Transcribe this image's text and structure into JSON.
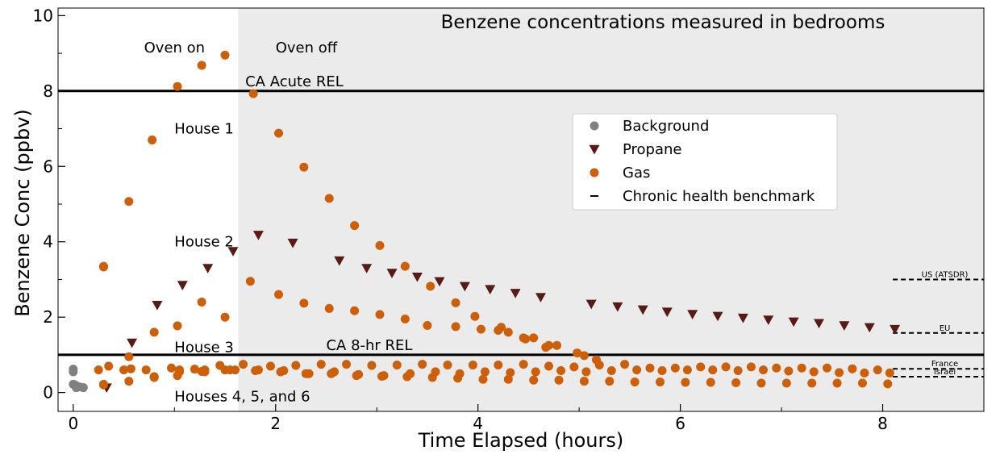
{
  "chart_data": {
    "type": "scatter",
    "title": "Benzene concentrations measured in bedrooms",
    "xlabel": "Time Elapsed (hours)",
    "ylabel": "Benzene Conc (ppbv)",
    "xlim": [
      -0.15,
      9.0
    ],
    "ylim": [
      -0.5,
      10.2
    ],
    "x_ticks": [
      0,
      2,
      4,
      6,
      8
    ],
    "y_ticks": [
      0,
      2,
      4,
      6,
      8,
      10
    ],
    "shaded_region": {
      "x_start": 1.63,
      "x_end": 9.0,
      "color": "#ebebeb"
    },
    "reference_lines": [
      {
        "y": 8.0,
        "label": "CA Acute REL",
        "label_x": 1.7
      },
      {
        "y": 1.0,
        "label": "CA 8-hr REL",
        "label_x": 2.5
      }
    ],
    "benchmarks": [
      {
        "y": 3.0,
        "label": "US (ATSDR)"
      },
      {
        "y": 1.58,
        "label": "EU"
      },
      {
        "y": 0.63,
        "label": "France"
      },
      {
        "y": 0.42,
        "label": "Israel"
      }
    ],
    "benchmark_x_range": [
      8.1,
      9.0
    ],
    "annotations": [
      {
        "text": "Oven on",
        "x": 0.7,
        "y": 9.15
      },
      {
        "text": "Oven off",
        "x": 2.0,
        "y": 9.15
      },
      {
        "text": "House 1",
        "x": 1.0,
        "y": 7.0
      },
      {
        "text": "House 2",
        "x": 1.0,
        "y": 4.0
      },
      {
        "text": "House 3",
        "x": 1.0,
        "y": 1.2
      },
      {
        "text": "Houses 4, 5, and 6",
        "x": 1.0,
        "y": -0.1
      }
    ],
    "legend": {
      "placement": "center-right",
      "entries": [
        "Background",
        "Propane",
        "Gas",
        "Chronic health benchmark"
      ]
    },
    "colors": {
      "Background": "#808080",
      "Propane": "#5a1a14",
      "Gas": "#cc5f07"
    },
    "series": [
      {
        "name": "Background",
        "marker": "circle",
        "x": [
          0,
          0.0,
          0.02,
          0.06,
          0.1,
          0.0,
          0.03
        ],
        "y": [
          0.62,
          0.55,
          0.2,
          0.15,
          0.13,
          0.22,
          0.13
        ]
      },
      {
        "name": "Propane",
        "marker": "triangle-down",
        "x": [
          0.33,
          0.58,
          0.83,
          1.08,
          1.33,
          1.58,
          1.83,
          2.17,
          2.63,
          2.9,
          3.15,
          3.4,
          3.62,
          3.87,
          4.12,
          4.37,
          4.62,
          5.12,
          5.38,
          5.63,
          5.87,
          6.12,
          6.37,
          6.62,
          6.87,
          7.12,
          7.37,
          7.62,
          7.87,
          8.12
        ],
        "y": [
          0.13,
          1.32,
          2.32,
          2.85,
          3.3,
          3.75,
          4.18,
          3.97,
          3.5,
          3.3,
          3.17,
          3.07,
          2.95,
          2.82,
          2.74,
          2.64,
          2.53,
          2.35,
          2.28,
          2.2,
          2.14,
          2.08,
          2.03,
          1.98,
          1.93,
          1.88,
          1.84,
          1.78,
          1.73,
          1.68
        ]
      },
      {
        "name": "Gas",
        "marker": "circle",
        "x": [
          0.3,
          0.55,
          0.78,
          1.03,
          1.27,
          1.5,
          1.78,
          2.03,
          2.28,
          2.53,
          2.78,
          3.03,
          0.3,
          0.8,
          1.03,
          1.27,
          1.5,
          1.75,
          2.03,
          2.28,
          2.53,
          2.78,
          3.03,
          3.28,
          3.5,
          3.78,
          4.03,
          4.3,
          4.55,
          4.78,
          5.05,
          0.3,
          0.55,
          0.8,
          1.03,
          1.27,
          1.5,
          3.28,
          3.53,
          3.78,
          3.97,
          4.23,
          4.47,
          4.67,
          4.98,
          5.17,
          4.2,
          4.45,
          4.7,
          0.25,
          0.35,
          0.5,
          0.57,
          0.72,
          0.8,
          0.97,
          1.05,
          1.2,
          1.3,
          1.45,
          1.6,
          1.68,
          1.83,
          1.95,
          2.08,
          2.2,
          2.33,
          2.45,
          2.58,
          2.7,
          2.82,
          2.95,
          3.07,
          3.2,
          3.33,
          3.45,
          3.58,
          3.7,
          3.82,
          3.95,
          4.07,
          4.2,
          4.32,
          4.45,
          4.57,
          4.7,
          4.82,
          4.95,
          5.07,
          5.2,
          5.32,
          5.45,
          5.57,
          5.7,
          5.82,
          5.95,
          6.07,
          6.2,
          6.32,
          6.45,
          6.57,
          6.7,
          6.82,
          6.95,
          7.07,
          7.2,
          7.32,
          7.45,
          7.57,
          7.7,
          7.82,
          7.95,
          8.07,
          0.3,
          0.55,
          0.8,
          1.05,
          1.3,
          1.55,
          1.8,
          2.05,
          2.3,
          2.55,
          2.8,
          3.05,
          3.3,
          3.55,
          3.8,
          4.05,
          4.3,
          4.55,
          4.8,
          5.05,
          5.3,
          5.55,
          5.8,
          6.05,
          6.3,
          6.55,
          6.8,
          7.05,
          7.3,
          7.55,
          7.8,
          8.05
        ],
        "y": [
          3.33,
          5.07,
          6.7,
          8.12,
          8.68,
          8.95,
          7.93,
          6.88,
          5.98,
          5.15,
          4.43,
          3.9,
          3.35,
          1.6,
          1.77,
          2.4,
          2.0,
          2.95,
          2.6,
          2.37,
          2.23,
          2.17,
          2.07,
          1.95,
          1.78,
          1.75,
          1.68,
          1.6,
          1.45,
          1.25,
          0.98,
          0.2,
          0.95,
          0.42,
          0.45,
          0.56,
          0.6,
          3.35,
          2.82,
          2.38,
          2.02,
          1.73,
          1.42,
          1.2,
          1.05,
          0.87,
          1.65,
          1.45,
          1.25,
          0.6,
          0.7,
          0.6,
          0.63,
          0.6,
          0.42,
          0.65,
          0.6,
          0.62,
          0.6,
          0.72,
          0.6,
          0.75,
          0.6,
          0.7,
          0.58,
          0.72,
          0.5,
          0.75,
          0.55,
          0.75,
          0.48,
          0.72,
          0.45,
          0.73,
          0.5,
          0.75,
          0.55,
          0.73,
          0.5,
          0.73,
          0.55,
          0.73,
          0.53,
          0.75,
          0.55,
          0.7,
          0.58,
          0.68,
          0.55,
          0.73,
          0.58,
          0.75,
          0.6,
          0.65,
          0.58,
          0.65,
          0.6,
          0.68,
          0.6,
          0.68,
          0.58,
          0.68,
          0.6,
          0.65,
          0.57,
          0.65,
          0.55,
          0.65,
          0.53,
          0.63,
          0.52,
          0.6,
          0.52,
          0.22,
          0.3,
          0.4,
          0.55,
          0.55,
          0.6,
          0.58,
          0.55,
          0.5,
          0.5,
          0.45,
          0.43,
          0.42,
          0.4,
          0.38,
          0.35,
          0.35,
          0.33,
          0.33,
          0.3,
          0.3,
          0.28,
          0.28,
          0.27,
          0.27,
          0.26,
          0.25,
          0.25,
          0.25,
          0.25,
          0.25,
          0.23
        ]
      }
    ]
  }
}
